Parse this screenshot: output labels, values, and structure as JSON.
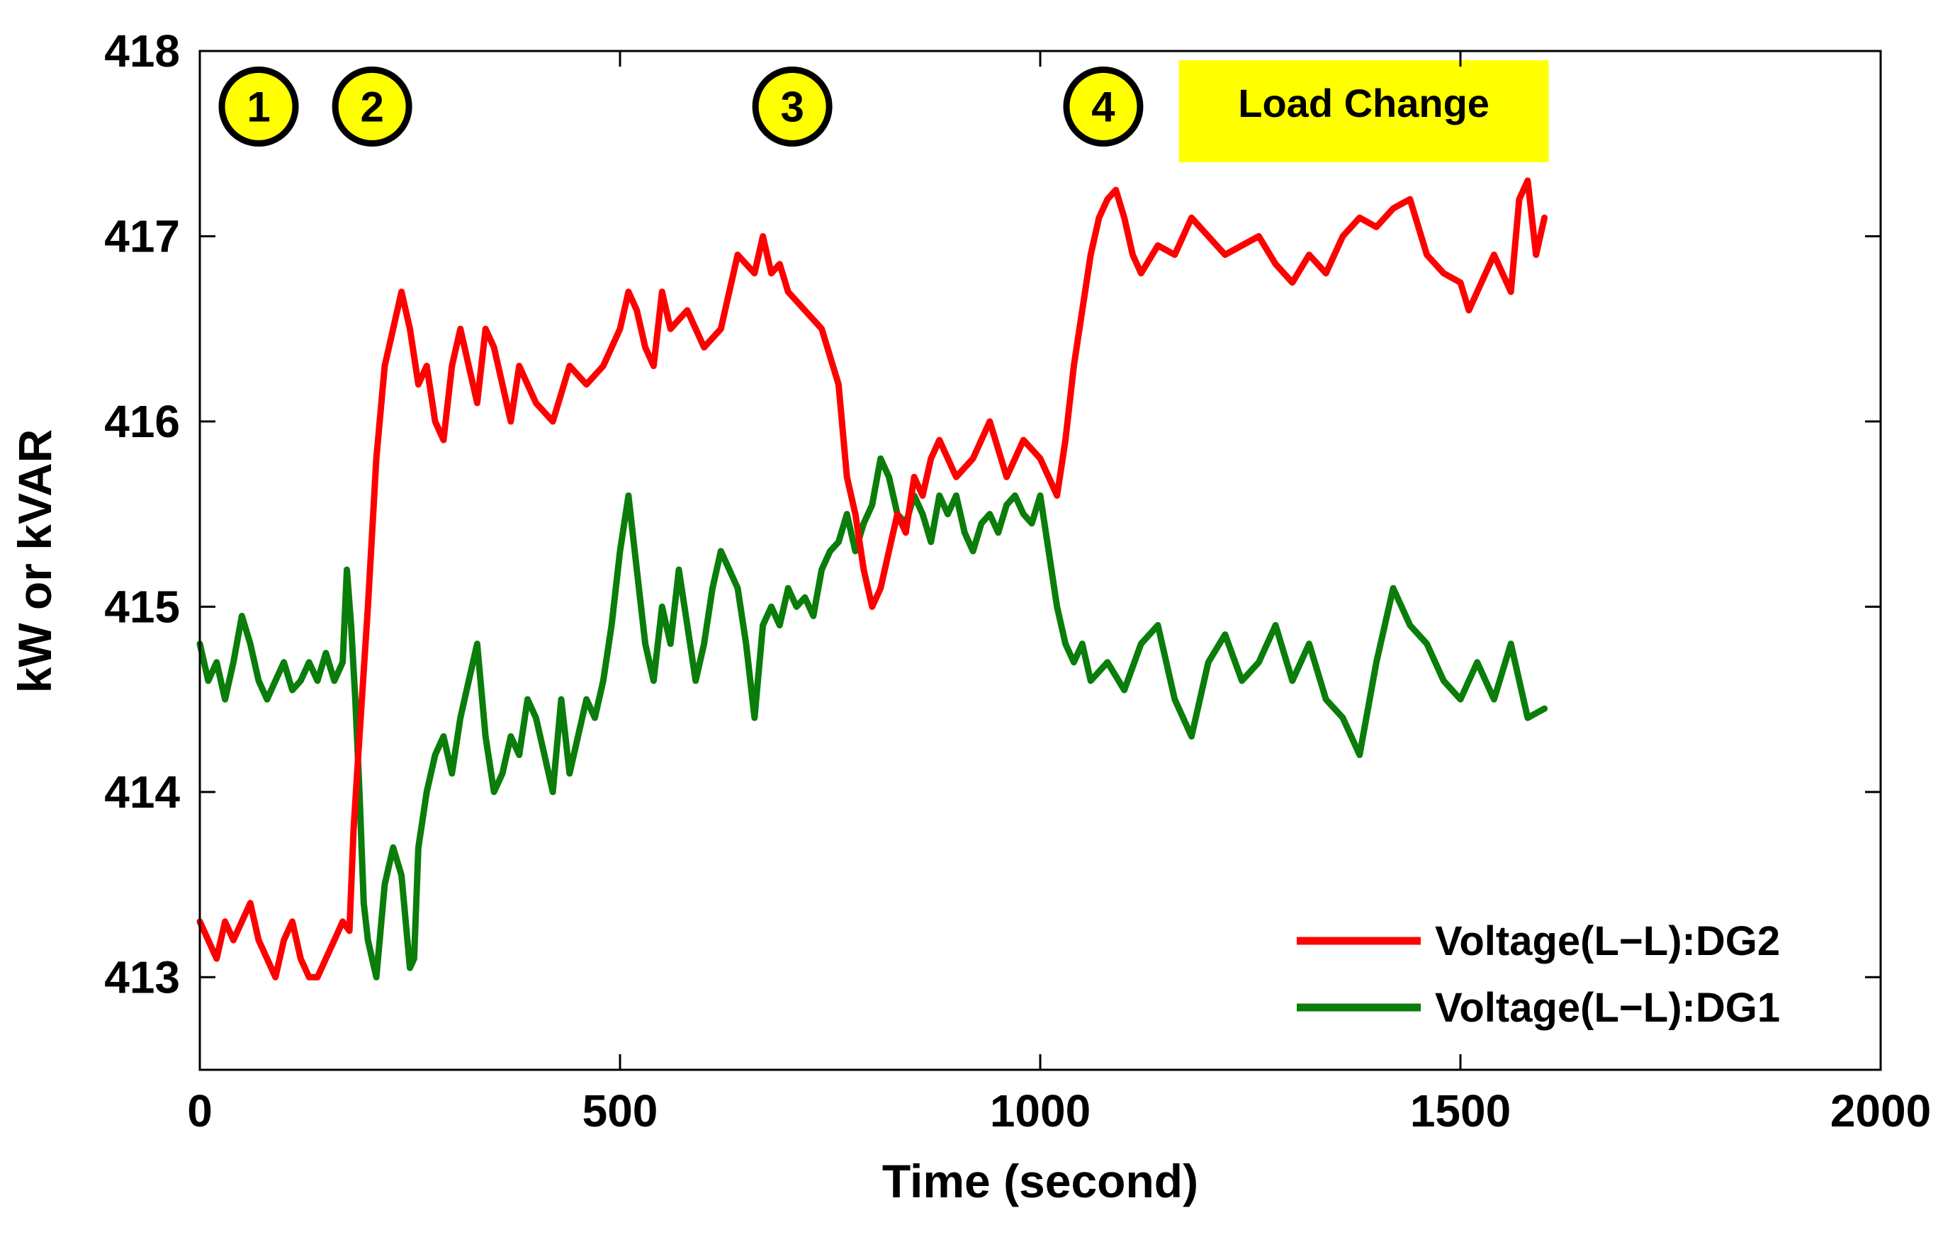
{
  "chart_data": {
    "type": "line",
    "title": "",
    "xlabel": "Time (second)",
    "ylabel": "kW or kVAR",
    "xlim": [
      0,
      2000
    ],
    "ylim": [
      412.5,
      418
    ],
    "xticks": [
      0,
      500,
      1000,
      1500,
      2000
    ],
    "xtick_labels": [
      "0",
      "500",
      "1000",
      "1500",
      "2000"
    ],
    "yticks": [
      413,
      414,
      415,
      416,
      417,
      418
    ],
    "ytick_labels": [
      "413",
      "414",
      "415",
      "416",
      "417",
      "418"
    ],
    "grid": false,
    "legend_position": "bottom-right",
    "series": [
      {
        "name": "Voltage(L−L):DG2",
        "color": "#ff0000",
        "x": [
          0,
          10,
          20,
          30,
          40,
          50,
          60,
          70,
          80,
          90,
          100,
          110,
          120,
          130,
          140,
          150,
          160,
          170,
          178,
          183,
          190,
          200,
          210,
          220,
          230,
          240,
          250,
          260,
          270,
          280,
          290,
          300,
          310,
          320,
          330,
          340,
          350,
          360,
          370,
          380,
          390,
          400,
          420,
          440,
          460,
          480,
          500,
          510,
          520,
          530,
          540,
          550,
          560,
          580,
          600,
          620,
          640,
          660,
          670,
          680,
          690,
          700,
          720,
          740,
          760,
          770,
          780,
          790,
          800,
          810,
          820,
          830,
          840,
          850,
          860,
          870,
          880,
          900,
          920,
          940,
          960,
          980,
          1000,
          1010,
          1020,
          1030,
          1040,
          1050,
          1060,
          1070,
          1080,
          1090,
          1100,
          1110,
          1120,
          1140,
          1160,
          1180,
          1200,
          1220,
          1240,
          1260,
          1280,
          1300,
          1320,
          1340,
          1360,
          1380,
          1400,
          1420,
          1440,
          1460,
          1480,
          1500,
          1510,
          1520,
          1540,
          1560,
          1570,
          1580,
          1590,
          1600
        ],
        "values": [
          413.3,
          413.2,
          413.1,
          413.3,
          413.2,
          413.3,
          413.4,
          413.2,
          413.1,
          413.0,
          413.2,
          413.3,
          413.1,
          413.0,
          413.0,
          413.1,
          413.2,
          413.3,
          413.25,
          413.8,
          414.3,
          415.0,
          415.8,
          416.3,
          416.5,
          416.7,
          416.5,
          416.2,
          416.3,
          416.0,
          415.9,
          416.3,
          416.5,
          416.3,
          416.1,
          416.5,
          416.4,
          416.2,
          416.0,
          416.3,
          416.2,
          416.1,
          416.0,
          416.3,
          416.2,
          416.3,
          416.5,
          416.7,
          416.6,
          416.4,
          416.3,
          416.7,
          416.5,
          416.6,
          416.4,
          416.5,
          416.9,
          416.8,
          417.0,
          416.8,
          416.85,
          416.7,
          416.6,
          416.5,
          416.2,
          415.7,
          415.5,
          415.2,
          415.0,
          415.1,
          415.3,
          415.5,
          415.4,
          415.7,
          415.6,
          415.8,
          415.9,
          415.7,
          415.8,
          416.0,
          415.7,
          415.9,
          415.8,
          415.7,
          415.6,
          415.9,
          416.3,
          416.6,
          416.9,
          417.1,
          417.2,
          417.25,
          417.1,
          416.9,
          416.8,
          416.95,
          416.9,
          417.1,
          417.0,
          416.9,
          416.95,
          417.0,
          416.85,
          416.75,
          416.9,
          416.8,
          417.0,
          417.1,
          417.05,
          417.15,
          417.2,
          416.9,
          416.8,
          416.75,
          416.6,
          416.7,
          416.9,
          416.7,
          417.2,
          417.3,
          416.9,
          417.1
        ]
      },
      {
        "name": "Voltage(L−L):DG1",
        "color": "#0a7d0a",
        "x": [
          0,
          10,
          20,
          30,
          40,
          50,
          60,
          70,
          80,
          90,
          100,
          110,
          120,
          130,
          140,
          150,
          160,
          170,
          175,
          180,
          185,
          190,
          195,
          200,
          205,
          210,
          220,
          230,
          240,
          250,
          255,
          260,
          270,
          280,
          290,
          300,
          310,
          320,
          330,
          340,
          350,
          360,
          370,
          380,
          390,
          400,
          410,
          420,
          430,
          440,
          450,
          460,
          470,
          480,
          490,
          500,
          510,
          520,
          530,
          540,
          550,
          560,
          570,
          580,
          590,
          600,
          610,
          620,
          630,
          640,
          650,
          660,
          670,
          680,
          690,
          700,
          710,
          720,
          730,
          740,
          750,
          760,
          770,
          780,
          790,
          800,
          810,
          820,
          830,
          840,
          850,
          860,
          870,
          880,
          890,
          900,
          910,
          920,
          930,
          940,
          950,
          960,
          970,
          980,
          990,
          1000,
          1010,
          1020,
          1030,
          1040,
          1050,
          1060,
          1080,
          1100,
          1120,
          1140,
          1160,
          1180,
          1200,
          1220,
          1240,
          1260,
          1280,
          1300,
          1320,
          1340,
          1360,
          1380,
          1400,
          1420,
          1440,
          1460,
          1480,
          1500,
          1520,
          1540,
          1560,
          1580,
          1600
        ],
        "values": [
          414.8,
          414.6,
          414.7,
          414.5,
          414.7,
          414.95,
          414.8,
          414.6,
          414.5,
          414.6,
          414.7,
          414.55,
          414.6,
          414.7,
          414.6,
          414.75,
          414.6,
          414.7,
          415.2,
          414.9,
          414.5,
          414.0,
          413.4,
          413.2,
          413.1,
          413.0,
          413.5,
          413.7,
          413.55,
          413.05,
          413.1,
          413.7,
          414.0,
          414.2,
          414.3,
          414.1,
          414.4,
          414.6,
          414.8,
          414.3,
          414.0,
          414.1,
          414.3,
          414.2,
          414.5,
          414.4,
          414.2,
          414.0,
          414.5,
          414.1,
          414.3,
          414.5,
          414.4,
          414.6,
          414.9,
          415.3,
          415.6,
          415.2,
          414.8,
          414.6,
          415.0,
          414.8,
          415.2,
          414.9,
          414.6,
          414.8,
          415.1,
          415.3,
          415.2,
          415.1,
          414.8,
          414.4,
          414.9,
          415.0,
          414.9,
          415.1,
          415.0,
          415.05,
          414.95,
          415.2,
          415.3,
          415.35,
          415.5,
          415.3,
          415.45,
          415.55,
          415.8,
          415.7,
          415.5,
          415.45,
          415.6,
          415.5,
          415.35,
          415.6,
          415.5,
          415.6,
          415.4,
          415.3,
          415.45,
          415.5,
          415.4,
          415.55,
          415.6,
          415.5,
          415.45,
          415.6,
          415.3,
          415.0,
          414.8,
          414.7,
          414.8,
          414.6,
          414.7,
          414.55,
          414.8,
          414.9,
          414.5,
          414.3,
          414.7,
          414.85,
          414.6,
          414.7,
          414.9,
          414.6,
          414.8,
          414.5,
          414.4,
          414.2,
          414.7,
          415.1,
          414.9,
          414.8,
          414.6,
          414.5,
          414.7,
          414.5,
          414.8,
          414.4,
          414.45
        ]
      }
    ],
    "annotations": {
      "markers": [
        {
          "label": "1",
          "x": 70,
          "y": 417.7
        },
        {
          "label": "2",
          "x": 205,
          "y": 417.7
        },
        {
          "label": "3",
          "x": 705,
          "y": 417.7
        },
        {
          "label": "4",
          "x": 1075,
          "y": 417.7
        }
      ],
      "banner": {
        "text": "Load Change",
        "x_start": 1165,
        "x_end": 1605,
        "y_bottom": 417.4,
        "y_top": 417.95,
        "color": "#ffff00"
      },
      "marker_fill": "#ffff00"
    }
  }
}
